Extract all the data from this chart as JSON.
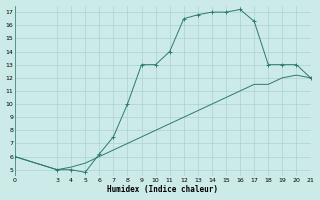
{
  "xlabel": "Humidex (Indice chaleur)",
  "bg_color": "#cceae7",
  "grid_color": "#aad4d0",
  "line_color": "#2d7a6e",
  "line1_x": [
    0,
    3,
    4,
    5,
    6,
    7,
    8,
    9,
    10,
    11,
    12,
    13,
    14,
    15,
    16,
    17,
    18,
    19,
    20,
    21
  ],
  "line1_y": [
    6,
    5,
    5,
    4.8,
    6.2,
    7.5,
    10,
    13,
    13,
    14,
    16.5,
    16.8,
    17,
    17,
    17.2,
    16.3,
    13,
    13,
    13,
    12
  ],
  "line2_x": [
    0,
    3,
    4,
    5,
    6,
    7,
    8,
    9,
    10,
    11,
    12,
    13,
    14,
    15,
    16,
    17,
    18,
    19,
    20,
    21
  ],
  "line2_y": [
    6,
    5,
    5.2,
    5.5,
    6,
    6.5,
    7,
    7.5,
    8,
    8.5,
    9,
    9.5,
    10,
    10.5,
    11,
    11.5,
    11.5,
    12,
    12.2,
    12
  ],
  "xlim": [
    0,
    21
  ],
  "ylim": [
    4.5,
    17.5
  ],
  "xticks": [
    0,
    3,
    4,
    5,
    6,
    7,
    8,
    9,
    10,
    11,
    12,
    13,
    14,
    15,
    16,
    17,
    18,
    19,
    20,
    21
  ],
  "yticks": [
    5,
    6,
    7,
    8,
    9,
    10,
    11,
    12,
    13,
    14,
    15,
    16,
    17
  ]
}
